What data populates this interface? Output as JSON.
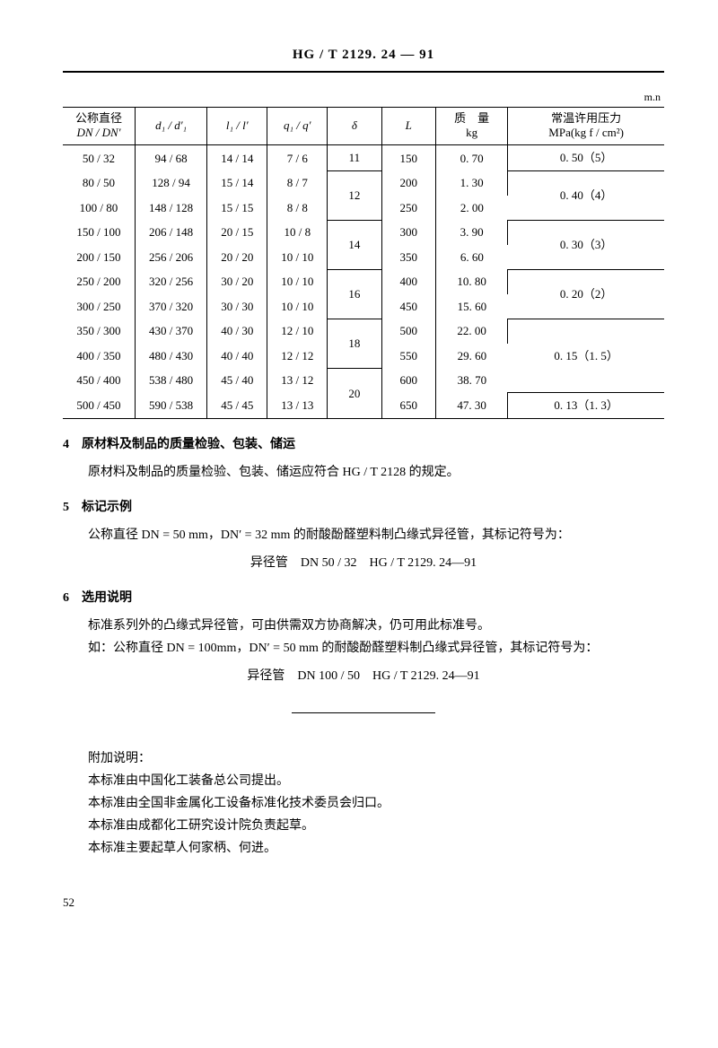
{
  "doc_code": "HG / T 2129. 24 — 91",
  "unit_label": "m.n",
  "table": {
    "headers": {
      "c1a": "公称直径",
      "c1b": "DN / DN'",
      "c2": "d₁ / d′₁",
      "c3": "l₁ / l′",
      "c4": "q₁ / q′",
      "c5": "δ",
      "c6": "L",
      "c7a": "质　量",
      "c7b": "kg",
      "c8a": "常温许用压力",
      "c8b": "MPa(kg f / cm²)"
    },
    "rows": [
      {
        "dn": "50 / 32",
        "d": "94 / 68",
        "l": "14 / 14",
        "q": "7 / 6",
        "delta": "11",
        "L": "150",
        "m": "0. 70",
        "p": "0. 50（5）"
      },
      {
        "dn": "80 / 50",
        "d": "128 / 94",
        "l": "15 / 14",
        "q": "8 / 7",
        "delta": "",
        "L": "200",
        "m": "1. 30",
        "p": "0. 40（4）"
      },
      {
        "dn": "100 / 80",
        "d": "148 / 128",
        "l": "15 / 15",
        "q": "8 / 8",
        "delta": "12",
        "L": "250",
        "m": "2. 00",
        "p": ""
      },
      {
        "dn": "150 / 100",
        "d": "206 / 148",
        "l": "20 / 15",
        "q": "10 / 8",
        "delta": "",
        "L": "300",
        "m": "3. 90",
        "p": "0. 30（3）"
      },
      {
        "dn": "200 / 150",
        "d": "256 / 206",
        "l": "20 / 20",
        "q": "10 / 10",
        "delta": "14",
        "L": "350",
        "m": "6. 60",
        "p": ""
      },
      {
        "dn": "250 / 200",
        "d": "320 / 256",
        "l": "30 / 20",
        "q": "10 / 10",
        "delta": "",
        "L": "400",
        "m": "10. 80",
        "p": "0. 20（2）"
      },
      {
        "dn": "300 / 250",
        "d": "370 / 320",
        "l": "30 / 30",
        "q": "10 / 10",
        "delta": "16",
        "L": "450",
        "m": "15. 60",
        "p": ""
      },
      {
        "dn": "350 / 300",
        "d": "430 / 370",
        "l": "40 / 30",
        "q": "12 / 10",
        "delta": "",
        "L": "500",
        "m": "22. 00",
        "p": ""
      },
      {
        "dn": "400 / 350",
        "d": "480 / 430",
        "l": "40 / 40",
        "q": "12 / 12",
        "delta": "18",
        "L": "550",
        "m": "29. 60",
        "p": "0. 15（1. 5）"
      },
      {
        "dn": "450 / 400",
        "d": "538 / 480",
        "l": "45 / 40",
        "q": "13 / 12",
        "delta": "",
        "L": "600",
        "m": "38. 70",
        "p": ""
      },
      {
        "dn": "500 / 450",
        "d": "590 / 538",
        "l": "45 / 45",
        "q": "13 / 13",
        "delta": "20",
        "L": "650",
        "m": "47. 30",
        "p": "0. 13（1. 3）"
      }
    ],
    "delta_spans": [
      1,
      2,
      2,
      2,
      2,
      2
    ],
    "p_groups": [
      {
        "rows": [
          0
        ],
        "value_row": 0,
        "bottom": true
      },
      {
        "rows": [
          1,
          2
        ],
        "value_row": 1,
        "bottom": true,
        "top": false
      },
      {
        "rows": [
          3,
          4
        ],
        "value_row": 3,
        "bottom": true
      },
      {
        "rows": [
          5,
          6
        ],
        "value_row": 5,
        "bottom": true
      },
      {
        "rows": [
          7,
          8,
          9
        ],
        "value_row": 8,
        "bottom": true
      },
      {
        "rows": [
          10
        ],
        "value_row": 10,
        "bottom": false
      }
    ]
  },
  "sec4_head": "4　原材料及制品的质量检验、包装、储运",
  "sec4_body": "原材料及制品的质量检验、包装、储运应符合 HG / T 2128 的规定。",
  "sec5_head": "5　标记示例",
  "sec5_body": "公称直径 DN = 50 mm，DN′ = 32 mm 的耐酸酚醛塑料制凸缘式异径管，其标记符号为：",
  "sec5_mark": "异径管　DN 50 / 32　HG / T 2129. 24—91",
  "sec6_head": "6　选用说明",
  "sec6_body1": "标准系列外的凸缘式异径管，可由供需双方协商解决，仍可用此标准号。",
  "sec6_body2": "如：公称直径 DN = 100mm，DN′ = 50 mm 的耐酸酚醛塑料制凸缘式异径管，其标记符号为：",
  "sec6_mark": "异径管　DN 100 / 50　HG / T 2129. 24—91",
  "appendix_head": "附加说明：",
  "appendix_lines": [
    "本标准由中国化工装备总公司提出。",
    "本标准由全国非金属化工设备标准化技术委员会归口。",
    "本标准由成都化工研究设计院负责起草。",
    "本标准主要起草人何家柄、何进。"
  ],
  "page_number": "52"
}
